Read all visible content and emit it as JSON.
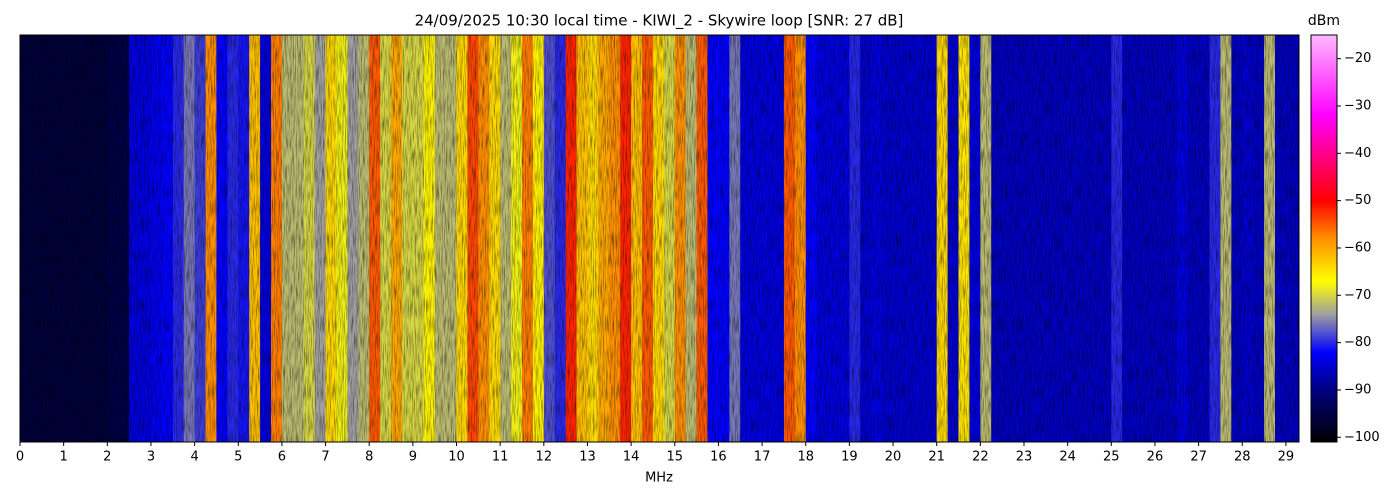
{
  "chart_data": {
    "type": "spectrogram",
    "title": "24/09/2025 10:30 local time - KIWI_2 - Skywire loop [SNR: 27 dB]",
    "x_label": "MHz",
    "colorbar_label": "dBm",
    "xlim": [
      0,
      29.3
    ],
    "xticks": [
      0,
      1,
      2,
      3,
      4,
      5,
      6,
      7,
      8,
      9,
      10,
      11,
      12,
      13,
      14,
      15,
      16,
      17,
      18,
      19,
      20,
      21,
      22,
      23,
      24,
      25,
      26,
      27,
      28,
      29
    ],
    "clim": [
      -101,
      -15
    ],
    "cticks": [
      {
        "value": -20,
        "label": "−20"
      },
      {
        "value": -30,
        "label": "−30"
      },
      {
        "value": -40,
        "label": "−40"
      },
      {
        "value": -50,
        "label": "−50"
      },
      {
        "value": -60,
        "label": "−60"
      },
      {
        "value": -70,
        "label": "−70"
      },
      {
        "value": -80,
        "label": "−80"
      },
      {
        "value": -90,
        "label": "−90"
      },
      {
        "value": -100,
        "label": "−100"
      }
    ],
    "colormap": [
      {
        "value": -101,
        "color": "#000000"
      },
      {
        "value": -90,
        "color": "#000080"
      },
      {
        "value": -82,
        "color": "#0000ff"
      },
      {
        "value": -74,
        "color": "#a0a0a0"
      },
      {
        "value": -67,
        "color": "#ffff00"
      },
      {
        "value": -58,
        "color": "#ff9000"
      },
      {
        "value": -50,
        "color": "#ff0000"
      },
      {
        "value": -32,
        "color": "#ff00ff"
      },
      {
        "value": -15,
        "color": "#ffb8ff"
      }
    ],
    "x": [
      0,
      0.25,
      0.5,
      0.75,
      1,
      1.25,
      1.5,
      1.75,
      2,
      2.25,
      2.5,
      2.75,
      3,
      3.25,
      3.5,
      3.75,
      4,
      4.25,
      4.5,
      4.75,
      5,
      5.25,
      5.5,
      5.75,
      6,
      6.25,
      6.5,
      6.75,
      7,
      7.25,
      7.5,
      7.75,
      8,
      8.25,
      8.5,
      8.75,
      9,
      9.25,
      9.5,
      9.75,
      10,
      10.25,
      10.5,
      10.75,
      11,
      11.25,
      11.5,
      11.75,
      12,
      12.25,
      12.5,
      12.75,
      13,
      13.25,
      13.5,
      13.75,
      14,
      14.25,
      14.5,
      14.75,
      15,
      15.25,
      15.5,
      15.75,
      16,
      16.25,
      16.5,
      16.75,
      17,
      17.25,
      17.5,
      17.75,
      18,
      18.25,
      18.5,
      18.75,
      19,
      19.25,
      19.5,
      19.75,
      20,
      20.25,
      20.5,
      20.75,
      21,
      21.25,
      21.5,
      21.75,
      22,
      22.25,
      22.5,
      22.75,
      23,
      23.25,
      23.5,
      23.75,
      24,
      24.25,
      24.5,
      24.75,
      25,
      25.25,
      25.5,
      25.75,
      26,
      26.25,
      26.5,
      26.75,
      27,
      27.25,
      27.5,
      27.75,
      28,
      28.25,
      28.5,
      28.75,
      29,
      29.25
    ],
    "values": [
      -96,
      -96,
      -96,
      -96,
      -96,
      -96,
      -96,
      -96,
      -95,
      -95,
      -84,
      -84,
      -83,
      -82,
      -80,
      -76,
      -79,
      -58,
      -82,
      -80,
      -81,
      -62,
      -84,
      -57,
      -72,
      -72,
      -70,
      -74,
      -64,
      -68,
      -74,
      -72,
      -55,
      -70,
      -60,
      -70,
      -70,
      -66,
      -72,
      -72,
      -64,
      -54,
      -58,
      -64,
      -72,
      -68,
      -57,
      -66,
      -78,
      -80,
      -52,
      -62,
      -64,
      -60,
      -58,
      -52,
      -62,
      -55,
      -64,
      -70,
      -58,
      -72,
      -55,
      -82,
      -82,
      -76,
      -84,
      -84,
      -84,
      -84,
      -55,
      -58,
      -82,
      -84,
      -84,
      -84,
      -80,
      -85,
      -84,
      -85,
      -85,
      -85,
      -85,
      -85,
      -64,
      -85,
      -65,
      -84,
      -72,
      -86,
      -86,
      -86,
      -86,
      -86,
      -86,
      -86,
      -86,
      -86,
      -86,
      -86,
      -80,
      -86,
      -86,
      -86,
      -86,
      -86,
      -84,
      -86,
      -86,
      -80,
      -72,
      -86,
      -85,
      -86,
      -72,
      -86,
      -86,
      -86
    ]
  }
}
